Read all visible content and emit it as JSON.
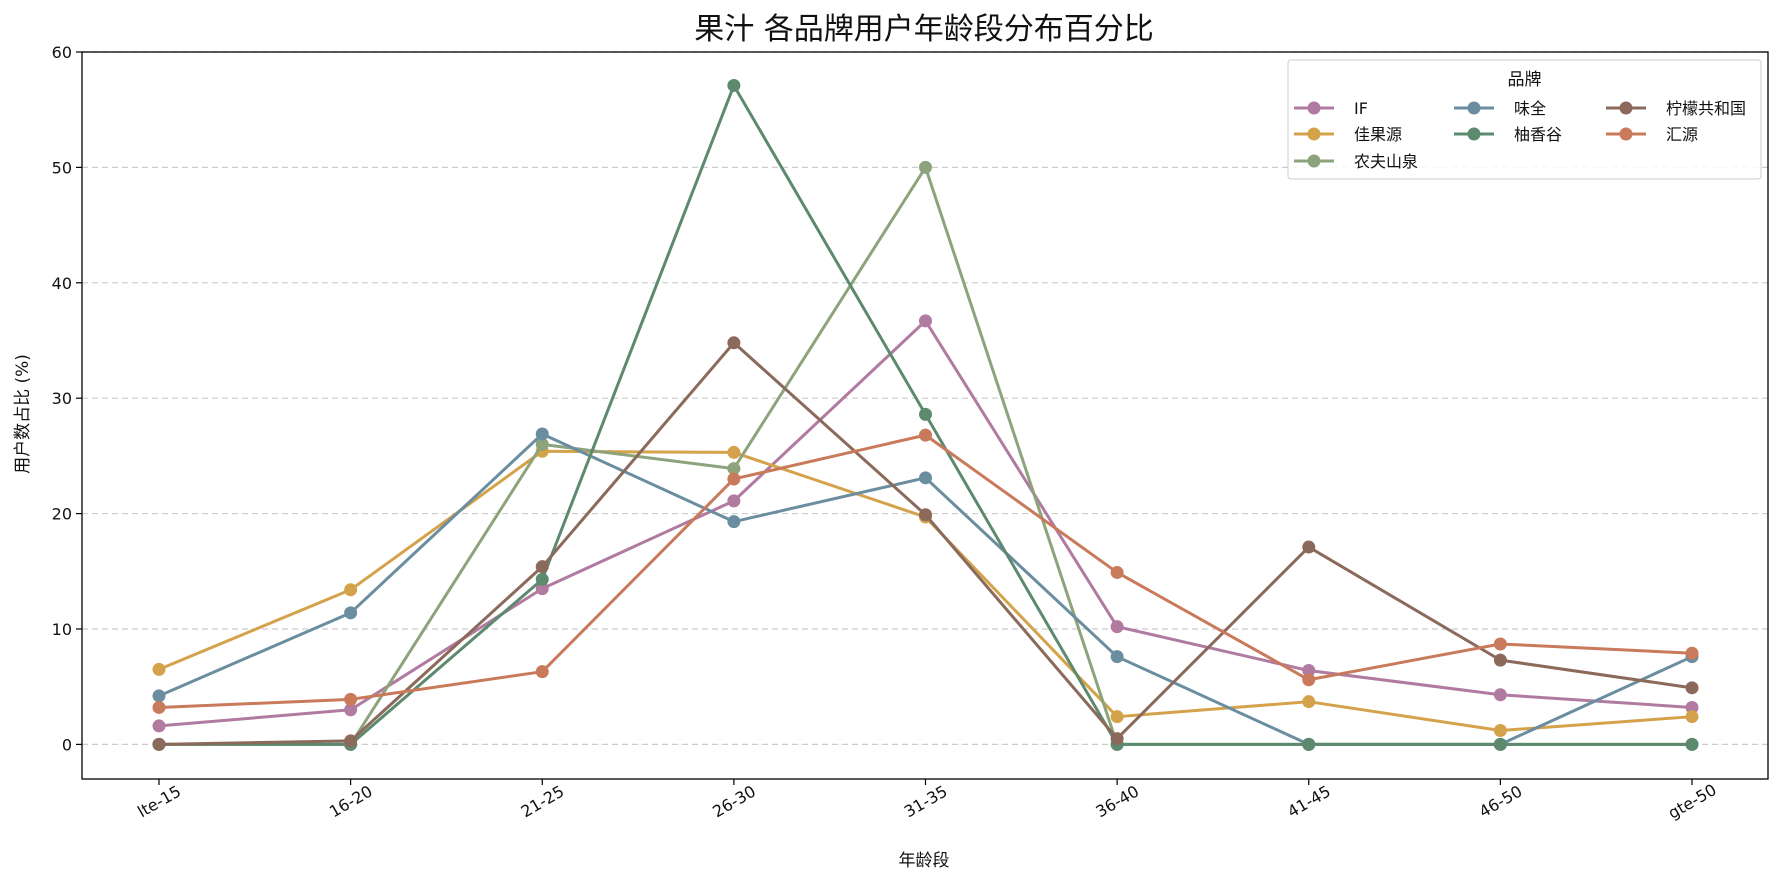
{
  "chart_data": {
    "type": "line",
    "title": "果汁 各品牌用户年龄段分布百分比",
    "xlabel": "年龄段",
    "ylabel": "用户数占比 (%)",
    "ylim": [
      -3,
      60
    ],
    "yticks": [
      0,
      10,
      20,
      30,
      40,
      50,
      60
    ],
    "grid": "horizontal-dashed",
    "categories": [
      "lte-15",
      "16-20",
      "21-25",
      "26-30",
      "31-35",
      "36-40",
      "41-45",
      "46-50",
      "gte-50"
    ],
    "legend": {
      "title": "品牌",
      "placement": "top-right",
      "columns": 3
    },
    "series": [
      {
        "name": "IF",
        "color": "#b07aa1",
        "values": [
          1.6,
          3.0,
          13.5,
          21.1,
          36.7,
          10.2,
          6.4,
          4.3,
          3.2
        ]
      },
      {
        "name": "佳果源",
        "color": "#d4a24a",
        "values": [
          6.5,
          13.4,
          25.4,
          25.3,
          19.7,
          2.4,
          3.7,
          1.2,
          2.4
        ]
      },
      {
        "name": "农夫山泉",
        "color": "#8da37b",
        "values": [
          0.0,
          0.0,
          26.0,
          23.9,
          50.0,
          0.0,
          0.0,
          0.0,
          0.0
        ]
      },
      {
        "name": "味全",
        "color": "#6a8ea0",
        "values": [
          4.2,
          11.4,
          26.9,
          19.3,
          23.1,
          7.6,
          0.0,
          0.0,
          7.6
        ]
      },
      {
        "name": "柚香谷",
        "color": "#5d8a6e",
        "values": [
          0.0,
          0.0,
          14.3,
          57.1,
          28.6,
          0.0,
          0.0,
          0.0,
          0.0
        ]
      },
      {
        "name": "柠檬共和国",
        "color": "#8b6a5c",
        "values": [
          0.0,
          0.3,
          15.4,
          34.8,
          19.9,
          0.5,
          17.1,
          7.3,
          4.9
        ]
      },
      {
        "name": "汇源",
        "color": "#c87a5a",
        "values": [
          3.2,
          3.9,
          6.3,
          23.0,
          26.8,
          14.9,
          5.6,
          8.7,
          7.9
        ]
      }
    ]
  }
}
